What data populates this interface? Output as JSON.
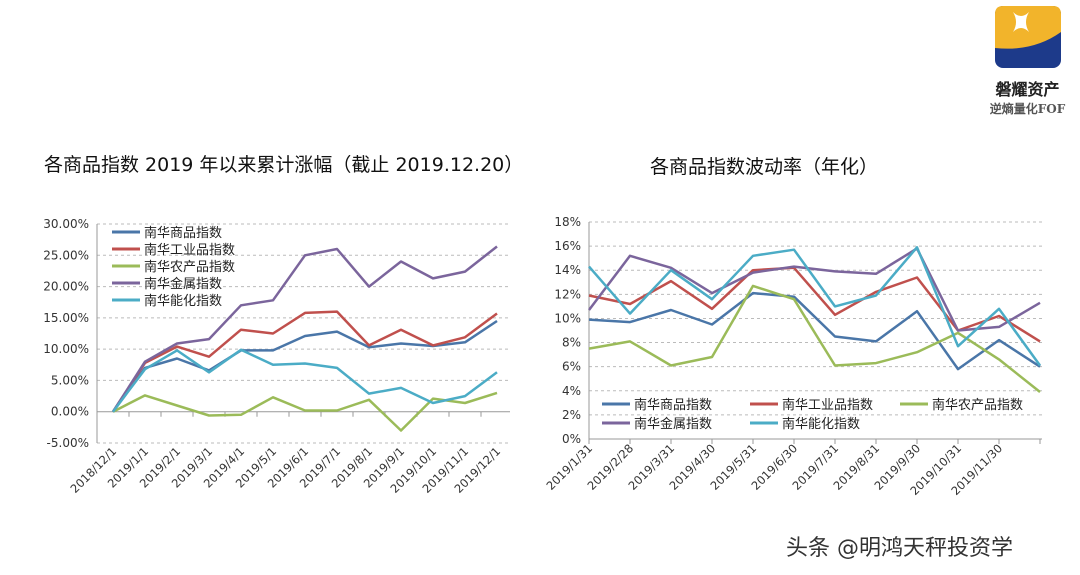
{
  "logo": {
    "name": "磐耀资产",
    "slogan": "逆熵量化FOF",
    "colors": [
      "#f2b42b",
      "#1d3a8a"
    ]
  },
  "watermark": "头条 @明鸿天秤投资学",
  "chart_data": [
    {
      "type": "line",
      "title": "各商品指数 2019 年以来累计涨幅（截止 2019.12.20）",
      "categories": [
        "2018/12/1",
        "2019/1/1",
        "2019/2/1",
        "2019/3/1",
        "2019/4/1",
        "2019/5/1",
        "2019/6/1",
        "2019/7/1",
        "2019/8/1",
        "2019/9/1",
        "2019/10/1",
        "2019/11/1",
        "2019/12/1"
      ],
      "ylim": [
        -5,
        30
      ],
      "yticks": [
        "30.00%",
        "25.00%",
        "20.00%",
        "15.00%",
        "10.00%",
        "5.00%",
        "0.00%",
        "-5.00%"
      ],
      "grid": true,
      "legend": "top-left",
      "series": [
        {
          "name": "南华商品指数",
          "color": "#4a76a8",
          "values": [
            0,
            7.0,
            8.5,
            6.6,
            9.8,
            9.8,
            12.1,
            12.8,
            10.3,
            10.9,
            10.5,
            11.1,
            14.5
          ]
        },
        {
          "name": "南华工业品指数",
          "color": "#c0504d",
          "values": [
            0,
            7.8,
            10.4,
            8.8,
            13.1,
            12.5,
            15.8,
            16.0,
            10.6,
            13.1,
            10.6,
            11.9,
            15.7
          ]
        },
        {
          "name": "南华农产品指数",
          "color": "#9bbb59",
          "values": [
            0,
            2.6,
            1.0,
            -0.6,
            -0.5,
            2.3,
            0.2,
            0.2,
            1.9,
            -3.0,
            2.1,
            1.4,
            3.0
          ]
        },
        {
          "name": "南华金属指数",
          "color": "#7b659c",
          "values": [
            0,
            8.0,
            10.9,
            11.6,
            17.0,
            17.8,
            25.0,
            26.0,
            20.0,
            24.0,
            21.3,
            22.4,
            26.4
          ]
        },
        {
          "name": "南华能化指数",
          "color": "#4bacc6",
          "values": [
            0,
            6.8,
            9.8,
            6.3,
            9.9,
            7.5,
            7.7,
            7.0,
            2.9,
            3.8,
            1.4,
            2.5,
            6.3
          ]
        }
      ]
    },
    {
      "type": "line",
      "title": "各商品指数波动率（年化）",
      "categories": [
        "2019/1/31",
        "2019/2/28",
        "2019/3/31",
        "2019/4/30",
        "2019/5/31",
        "2019/6/30",
        "2019/7/31",
        "2019/8/31",
        "2019/9/30",
        "2019/10/31",
        "2019/11/30",
        ""
      ],
      "ylim": [
        0,
        18
      ],
      "yticks": [
        "18%",
        "16%",
        "14%",
        "12%",
        "10%",
        "8%",
        "6%",
        "4%",
        "2%",
        "0%"
      ],
      "grid": true,
      "legend": "bottom",
      "series": [
        {
          "name": "南华商品指数",
          "color": "#4a76a8",
          "values": [
            9.9,
            9.7,
            10.7,
            9.5,
            12.1,
            11.8,
            8.5,
            8.1,
            10.6,
            5.8,
            8.2,
            6.0
          ]
        },
        {
          "name": "南华工业品指数",
          "color": "#c0504d",
          "values": [
            11.9,
            11.2,
            13.1,
            10.8,
            14.0,
            14.2,
            10.3,
            12.2,
            13.4,
            9.0,
            10.2,
            8.1
          ]
        },
        {
          "name": "南华农产品指数",
          "color": "#9bbb59",
          "values": [
            7.5,
            8.1,
            6.1,
            6.8,
            12.7,
            11.6,
            6.1,
            6.3,
            7.2,
            8.8,
            6.6,
            3.9
          ]
        },
        {
          "name": "南华金属指数",
          "color": "#7b659c",
          "values": [
            10.7,
            15.2,
            14.2,
            12.1,
            13.8,
            14.3,
            13.9,
            13.7,
            15.8,
            9.0,
            9.3,
            11.3
          ]
        },
        {
          "name": "南华能化指数",
          "color": "#4bacc6",
          "values": [
            14.3,
            10.4,
            14.0,
            11.6,
            15.2,
            15.7,
            11.0,
            11.9,
            15.9,
            7.7,
            10.8,
            6.1
          ]
        }
      ]
    }
  ]
}
